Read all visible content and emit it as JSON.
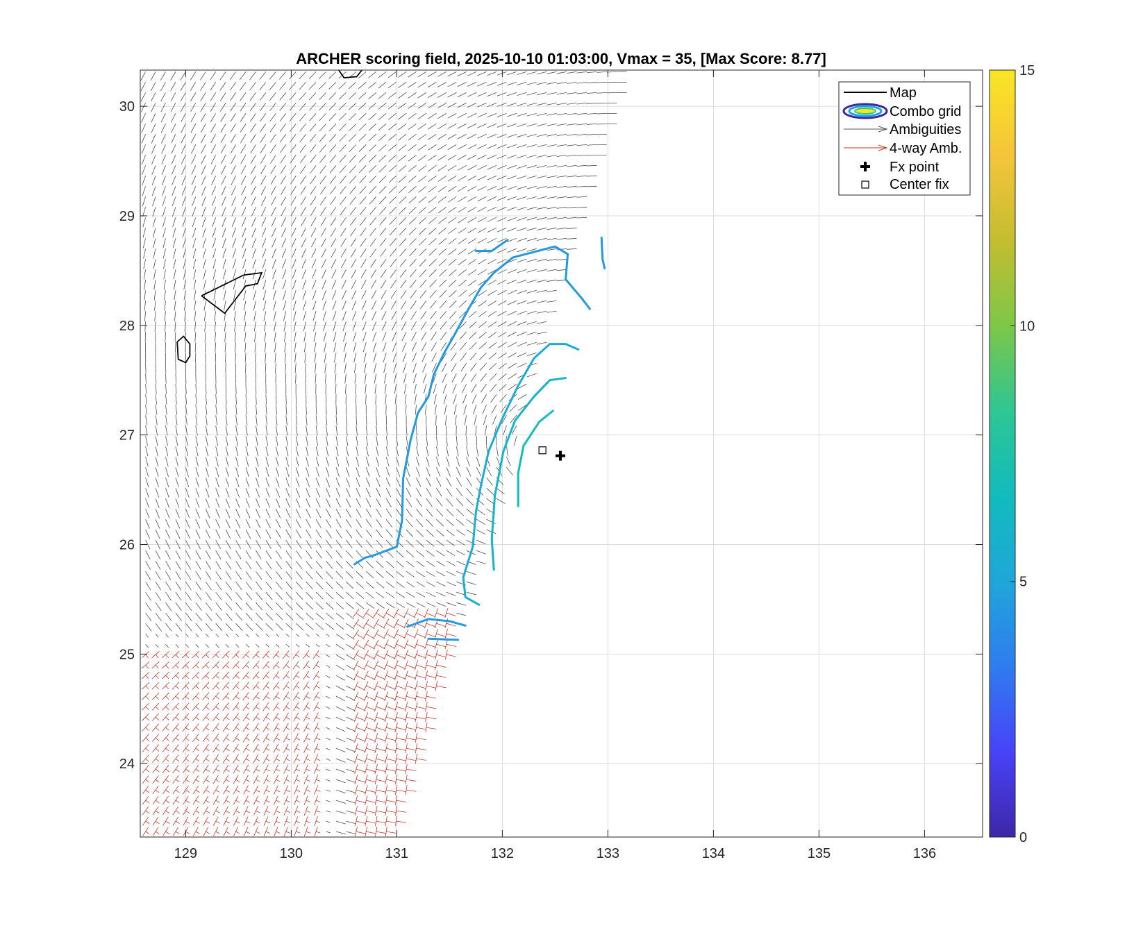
{
  "chart_data": {
    "type": "map-vector-field",
    "title": "ARCHER scoring field, 2025-10-10 01:03:00, Vmax = 35, [Max Score: 8.77]",
    "xlim": [
      128.57,
      136.55
    ],
    "ylim": [
      23.33,
      30.33
    ],
    "xticks": [
      129,
      130,
      131,
      132,
      133,
      134,
      135,
      136
    ],
    "yticks": [
      24,
      25,
      26,
      27,
      28,
      29,
      30
    ],
    "grid": true,
    "colorbar": {
      "range": [
        0,
        15
      ],
      "ticks": [
        0,
        5,
        10,
        15
      ],
      "colormap": [
        "#3e26a8",
        "#4743f8",
        "#2f7cf0",
        "#1fa6d9",
        "#12bbbd",
        "#2ec693",
        "#7dc747",
        "#c4bd30",
        "#f5c43a",
        "#f9e624"
      ]
    },
    "legend": {
      "placement": "top-right",
      "entries": [
        {
          "label": "Map",
          "symbol": "line",
          "color": "#000000"
        },
        {
          "label": "Combo grid",
          "symbol": "ellipse",
          "color": "#3e26a8"
        },
        {
          "label": "Ambiguities",
          "symbol": "arrow",
          "color": "#555555"
        },
        {
          "label": "4-way Amb.",
          "symbol": "arrow",
          "color": "#c0392b"
        },
        {
          "label": "Fx point",
          "symbol": "plus",
          "color": "#000000"
        },
        {
          "label": "Center fix",
          "symbol": "square",
          "color": "#000000"
        }
      ]
    },
    "fx_point": {
      "lon": 132.55,
      "lat": 26.81
    },
    "center_fix": {
      "lon": 132.38,
      "lat": 26.86
    },
    "land_outlines": [
      {
        "name": "island-1",
        "points": [
          [
            129.15,
            28.27
          ],
          [
            129.55,
            28.46
          ],
          [
            129.72,
            28.48
          ],
          [
            129.68,
            28.38
          ],
          [
            129.57,
            28.36
          ],
          [
            129.37,
            28.11
          ],
          [
            129.15,
            28.27
          ]
        ]
      },
      {
        "name": "island-2",
        "points": [
          [
            128.92,
            27.85
          ],
          [
            128.98,
            27.9
          ],
          [
            129.04,
            27.83
          ],
          [
            129.04,
            27.72
          ],
          [
            129.0,
            27.66
          ],
          [
            128.93,
            27.69
          ],
          [
            128.92,
            27.85
          ]
        ]
      },
      {
        "name": "island-3",
        "points": [
          [
            130.45,
            30.33
          ],
          [
            130.5,
            30.26
          ],
          [
            130.62,
            30.27
          ],
          [
            130.67,
            30.33
          ]
        ]
      }
    ],
    "score_contours": [
      {
        "level": 4.5,
        "points": [
          [
            130.6,
            25.82
          ],
          [
            130.7,
            25.88
          ],
          [
            130.78,
            25.9
          ],
          [
            131.0,
            25.98
          ],
          [
            131.05,
            26.22
          ],
          [
            131.06,
            26.6
          ],
          [
            131.13,
            26.95
          ],
          [
            131.2,
            27.2
          ],
          [
            131.3,
            27.35
          ],
          [
            131.35,
            27.55
          ],
          [
            131.45,
            27.75
          ],
          [
            131.55,
            27.92
          ],
          [
            131.68,
            28.15
          ],
          [
            131.8,
            28.35
          ],
          [
            131.92,
            28.48
          ],
          [
            132.1,
            28.62
          ],
          [
            132.3,
            28.67
          ],
          [
            132.5,
            28.72
          ],
          [
            132.62,
            28.65
          ]
        ]
      },
      {
        "level": 4.5,
        "points": [
          [
            132.62,
            28.65
          ],
          [
            132.6,
            28.42
          ],
          [
            132.75,
            28.25
          ],
          [
            132.83,
            28.15
          ]
        ]
      },
      {
        "level": 4.5,
        "points": [
          [
            131.75,
            28.68
          ],
          [
            131.9,
            28.68
          ],
          [
            132.05,
            28.78
          ]
        ]
      },
      {
        "level": 4.5,
        "points": [
          [
            132.94,
            28.8
          ],
          [
            132.95,
            28.6
          ],
          [
            132.97,
            28.52
          ]
        ]
      },
      {
        "level": 4.5,
        "points": [
          [
            131.1,
            25.25
          ],
          [
            131.3,
            25.32
          ],
          [
            131.5,
            25.3
          ],
          [
            131.65,
            25.26
          ]
        ]
      },
      {
        "level": 4.5,
        "points": [
          [
            131.3,
            25.14
          ],
          [
            131.58,
            25.13
          ]
        ]
      },
      {
        "level": 5.5,
        "points": [
          [
            131.78,
            25.45
          ],
          [
            131.65,
            25.52
          ],
          [
            131.63,
            25.7
          ],
          [
            131.72,
            25.98
          ],
          [
            131.75,
            26.3
          ],
          [
            131.8,
            26.55
          ],
          [
            131.87,
            26.85
          ],
          [
            132.0,
            27.15
          ],
          [
            132.15,
            27.45
          ],
          [
            132.3,
            27.7
          ],
          [
            132.45,
            27.83
          ],
          [
            132.6,
            27.83
          ],
          [
            132.72,
            27.78
          ]
        ]
      },
      {
        "level": 6.2,
        "points": [
          [
            131.92,
            25.77
          ],
          [
            131.9,
            26.05
          ],
          [
            131.93,
            26.45
          ],
          [
            132.01,
            26.85
          ],
          [
            132.12,
            27.13
          ],
          [
            132.3,
            27.35
          ],
          [
            132.45,
            27.5
          ],
          [
            132.6,
            27.52
          ]
        ]
      },
      {
        "level": 6.8,
        "points": [
          [
            132.15,
            26.35
          ],
          [
            132.15,
            26.65
          ],
          [
            132.2,
            26.9
          ],
          [
            132.35,
            27.12
          ],
          [
            132.48,
            27.22
          ]
        ]
      }
    ]
  }
}
